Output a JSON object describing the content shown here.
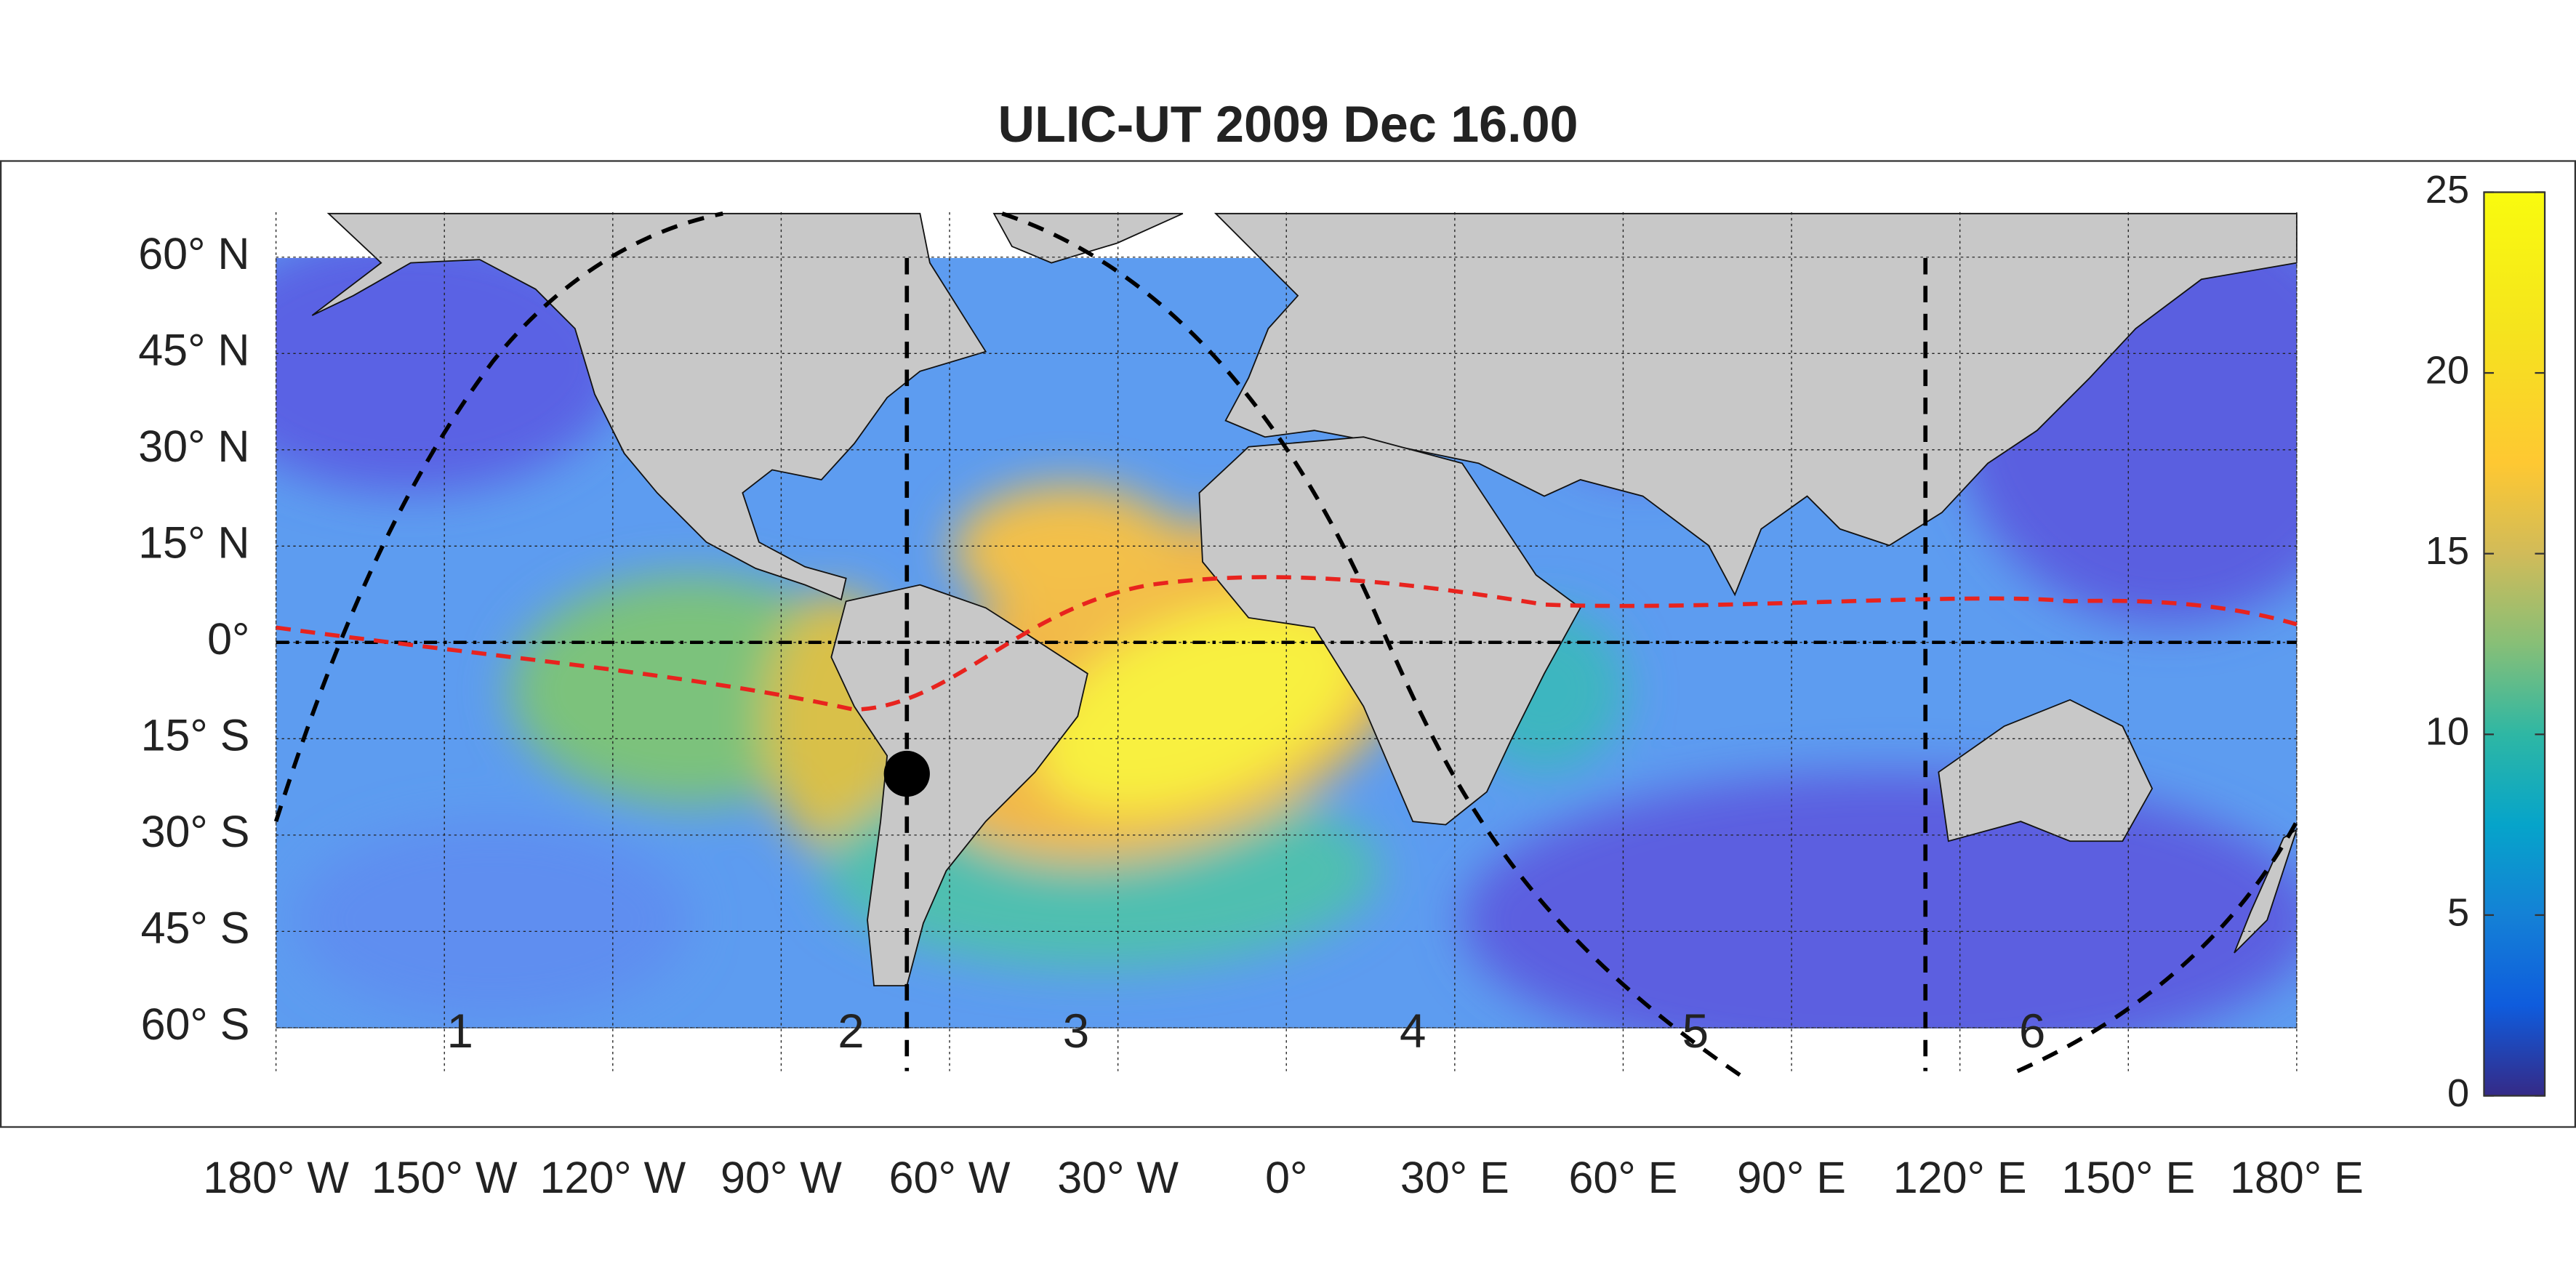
{
  "title": "ULIC-UT 2009 Dec 16.00",
  "map": {
    "xlim": [
      -180,
      180
    ],
    "ylim": [
      -66,
      67
    ],
    "xticks": [
      {
        "value": -180,
        "label": "180° W"
      },
      {
        "value": -150,
        "label": "150° W"
      },
      {
        "value": -120,
        "label": "120° W"
      },
      {
        "value": -90,
        "label": "90° W"
      },
      {
        "value": -60,
        "label": "60° W"
      },
      {
        "value": -30,
        "label": "30° W"
      },
      {
        "value": 0,
        "label": "0°"
      },
      {
        "value": 30,
        "label": "30° E"
      },
      {
        "value": 60,
        "label": "60° E"
      },
      {
        "value": 90,
        "label": "90° E"
      },
      {
        "value": 120,
        "label": "120° E"
      },
      {
        "value": 150,
        "label": "150° E"
      },
      {
        "value": 180,
        "label": "180° E"
      }
    ],
    "yticks": [
      {
        "value": 60,
        "label": "60° N"
      },
      {
        "value": 45,
        "label": "45° N"
      },
      {
        "value": 30,
        "label": "30° N"
      },
      {
        "value": 15,
        "label": "15° N"
      },
      {
        "value": 0,
        "label": "0°"
      },
      {
        "value": -15,
        "label": "15° S"
      },
      {
        "value": -30,
        "label": "30° S"
      },
      {
        "value": -45,
        "label": "45° S"
      },
      {
        "value": -60,
        "label": "60° S"
      }
    ],
    "regions": [
      "1",
      "2",
      "3",
      "4",
      "5",
      "6"
    ]
  },
  "colorbar": {
    "lim": [
      0,
      25
    ],
    "ticks": [
      0,
      5,
      10,
      15,
      20,
      25
    ]
  }
}
